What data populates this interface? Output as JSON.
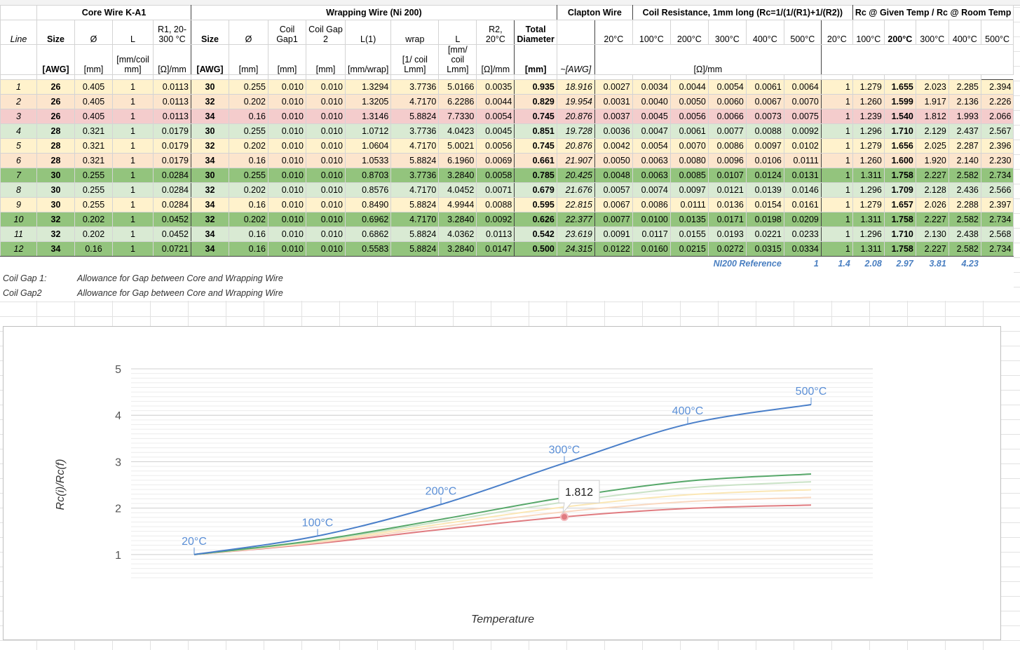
{
  "header": {
    "groups": {
      "core": "Core Wire K-A1",
      "wrap": "Wrapping Wire (Ni 200)",
      "clapton": "Clapton Wire",
      "coilres": "Coil Resistance, 1mm long (Rc=1/(1/(R1)+1/(R2))",
      "ratio": "Rc @ Given Temp / Rc @ Room Temp"
    },
    "cols": {
      "line": "Line",
      "size": "Size",
      "dia": "Ø",
      "l": "L",
      "r1": "R1, 20-300 °C",
      "gap1": "Coil Gap1",
      "gap2": "Coil Gap 2",
      "l1": "L(1)",
      "wrap": "wrap",
      "r2": "R2, 20°C",
      "total": "Total Diameter"
    },
    "temps": [
      "20°C",
      "100°C",
      "200°C",
      "300°C",
      "400°C",
      "500°C"
    ],
    "units": {
      "awg": "[AWG]",
      "mm": "[mm]",
      "mmcoil": "[mm/coil mm]",
      "ohmmm": "[Ω]/mm",
      "mmwrap": "[mm/wrap]",
      "perlmm": "[1/ coil Lmm]",
      "mmlmm": "[mm/ coil Lmm]",
      "awgapprox": "~[AWG]",
      "ohmcenter": "[Ω]/mm"
    }
  },
  "rows": [
    {
      "line": "1",
      "c": "bg-yellow",
      "cs": "26",
      "cd": "0.405",
      "cl": "1",
      "r1": "0.0113",
      "ws": "30",
      "wd": "0.255",
      "g1": "0.010",
      "g2": "0.010",
      "l1": "1.3294",
      "wrap": "3.7736",
      "wl": "5.0166",
      "r2": "0.0035",
      "td": "0.935",
      "awg": "18.916",
      "res": [
        "0.0027",
        "0.0034",
        "0.0044",
        "0.0054",
        "0.0061",
        "0.0064"
      ],
      "rat": [
        "1",
        "1.279",
        "1.655",
        "2.023",
        "2.285",
        "2.394"
      ]
    },
    {
      "line": "2",
      "c": "bg-orange",
      "cs": "26",
      "cd": "0.405",
      "cl": "1",
      "r1": "0.0113",
      "ws": "32",
      "wd": "0.202",
      "g1": "0.010",
      "g2": "0.010",
      "l1": "1.3205",
      "wrap": "4.7170",
      "wl": "6.2286",
      "r2": "0.0044",
      "td": "0.829",
      "awg": "19.954",
      "res": [
        "0.0031",
        "0.0040",
        "0.0050",
        "0.0060",
        "0.0067",
        "0.0070"
      ],
      "rat": [
        "1",
        "1.260",
        "1.599",
        "1.917",
        "2.136",
        "2.226"
      ]
    },
    {
      "line": "3",
      "c": "bg-red",
      "cs": "26",
      "cd": "0.405",
      "cl": "1",
      "r1": "0.0113",
      "ws": "34",
      "wd": "0.16",
      "g1": "0.010",
      "g2": "0.010",
      "l1": "1.3146",
      "wrap": "5.8824",
      "wl": "7.7330",
      "r2": "0.0054",
      "td": "0.745",
      "awg": "20.876",
      "res": [
        "0.0037",
        "0.0045",
        "0.0056",
        "0.0066",
        "0.0073",
        "0.0075"
      ],
      "rat": [
        "1",
        "1.239",
        "1.540",
        "1.812",
        "1.993",
        "2.066"
      ]
    },
    {
      "line": "4",
      "c": "bg-lgreen",
      "cs": "28",
      "cd": "0.321",
      "cl": "1",
      "r1": "0.0179",
      "ws": "30",
      "wd": "0.255",
      "g1": "0.010",
      "g2": "0.010",
      "l1": "1.0712",
      "wrap": "3.7736",
      "wl": "4.0423",
      "r2": "0.0045",
      "td": "0.851",
      "awg": "19.728",
      "res": [
        "0.0036",
        "0.0047",
        "0.0061",
        "0.0077",
        "0.0088",
        "0.0092"
      ],
      "rat": [
        "1",
        "1.296",
        "1.710",
        "2.129",
        "2.437",
        "2.567"
      ]
    },
    {
      "line": "5",
      "c": "bg-yellow",
      "cs": "28",
      "cd": "0.321",
      "cl": "1",
      "r1": "0.0179",
      "ws": "32",
      "wd": "0.202",
      "g1": "0.010",
      "g2": "0.010",
      "l1": "1.0604",
      "wrap": "4.7170",
      "wl": "5.0021",
      "r2": "0.0056",
      "td": "0.745",
      "awg": "20.876",
      "res": [
        "0.0042",
        "0.0054",
        "0.0070",
        "0.0086",
        "0.0097",
        "0.0102"
      ],
      "rat": [
        "1",
        "1.279",
        "1.656",
        "2.025",
        "2.287",
        "2.396"
      ]
    },
    {
      "line": "6",
      "c": "bg-orange",
      "cs": "28",
      "cd": "0.321",
      "cl": "1",
      "r1": "0.0179",
      "ws": "34",
      "wd": "0.16",
      "g1": "0.010",
      "g2": "0.010",
      "l1": "1.0533",
      "wrap": "5.8824",
      "wl": "6.1960",
      "r2": "0.0069",
      "td": "0.661",
      "awg": "21.907",
      "res": [
        "0.0050",
        "0.0063",
        "0.0080",
        "0.0096",
        "0.0106",
        "0.0111"
      ],
      "rat": [
        "1",
        "1.260",
        "1.600",
        "1.920",
        "2.140",
        "2.230"
      ]
    },
    {
      "line": "7",
      "c": "bg-green",
      "cs": "30",
      "cd": "0.255",
      "cl": "1",
      "r1": "0.0284",
      "ws": "30",
      "wd": "0.255",
      "g1": "0.010",
      "g2": "0.010",
      "l1": "0.8703",
      "wrap": "3.7736",
      "wl": "3.2840",
      "r2": "0.0058",
      "td": "0.785",
      "awg": "20.425",
      "res": [
        "0.0048",
        "0.0063",
        "0.0085",
        "0.0107",
        "0.0124",
        "0.0131"
      ],
      "rat": [
        "1",
        "1.311",
        "1.758",
        "2.227",
        "2.582",
        "2.734"
      ]
    },
    {
      "line": "8",
      "c": "bg-lgreen",
      "cs": "30",
      "cd": "0.255",
      "cl": "1",
      "r1": "0.0284",
      "ws": "32",
      "wd": "0.202",
      "g1": "0.010",
      "g2": "0.010",
      "l1": "0.8576",
      "wrap": "4.7170",
      "wl": "4.0452",
      "r2": "0.0071",
      "td": "0.679",
      "awg": "21.676",
      "res": [
        "0.0057",
        "0.0074",
        "0.0097",
        "0.0121",
        "0.0139",
        "0.0146"
      ],
      "rat": [
        "1",
        "1.296",
        "1.709",
        "2.128",
        "2.436",
        "2.566"
      ]
    },
    {
      "line": "9",
      "c": "bg-yellow",
      "cs": "30",
      "cd": "0.255",
      "cl": "1",
      "r1": "0.0284",
      "ws": "34",
      "wd": "0.16",
      "g1": "0.010",
      "g2": "0.010",
      "l1": "0.8490",
      "wrap": "5.8824",
      "wl": "4.9944",
      "r2": "0.0088",
      "td": "0.595",
      "awg": "22.815",
      "res": [
        "0.0067",
        "0.0086",
        "0.0111",
        "0.0136",
        "0.0154",
        "0.0161"
      ],
      "rat": [
        "1",
        "1.279",
        "1.657",
        "2.026",
        "2.288",
        "2.397"
      ]
    },
    {
      "line": "10",
      "c": "bg-green",
      "cs": "32",
      "cd": "0.202",
      "cl": "1",
      "r1": "0.0452",
      "ws": "32",
      "wd": "0.202",
      "g1": "0.010",
      "g2": "0.010",
      "l1": "0.6962",
      "wrap": "4.7170",
      "wl": "3.2840",
      "r2": "0.0092",
      "td": "0.626",
      "awg": "22.377",
      "res": [
        "0.0077",
        "0.0100",
        "0.0135",
        "0.0171",
        "0.0198",
        "0.0209"
      ],
      "rat": [
        "1",
        "1.311",
        "1.758",
        "2.227",
        "2.582",
        "2.734"
      ]
    },
    {
      "line": "11",
      "c": "bg-lgreen",
      "cs": "32",
      "cd": "0.202",
      "cl": "1",
      "r1": "0.0452",
      "ws": "34",
      "wd": "0.16",
      "g1": "0.010",
      "g2": "0.010",
      "l1": "0.6862",
      "wrap": "5.8824",
      "wl": "4.0362",
      "r2": "0.0113",
      "td": "0.542",
      "awg": "23.619",
      "res": [
        "0.0091",
        "0.0117",
        "0.0155",
        "0.0193",
        "0.0221",
        "0.0233"
      ],
      "rat": [
        "1",
        "1.296",
        "1.710",
        "2.130",
        "2.438",
        "2.568"
      ]
    },
    {
      "line": "12",
      "c": "bg-green",
      "cs": "34",
      "cd": "0.16",
      "cl": "1",
      "r1": "0.0721",
      "ws": "34",
      "wd": "0.16",
      "g1": "0.010",
      "g2": "0.010",
      "l1": "0.5583",
      "wrap": "5.8824",
      "wl": "3.2840",
      "r2": "0.0147",
      "td": "0.500",
      "awg": "24.315",
      "res": [
        "0.0122",
        "0.0160",
        "0.0215",
        "0.0272",
        "0.0315",
        "0.0334"
      ],
      "rat": [
        "1",
        "1.311",
        "1.758",
        "2.227",
        "2.582",
        "2.734"
      ]
    }
  ],
  "reference": {
    "label": "NI200 Reference",
    "values": [
      "1",
      "1.4",
      "2.08",
      "2.97",
      "3.81",
      "4.23"
    ]
  },
  "notes": [
    {
      "key": "Coil Gap 1:",
      "text": "Allowance for Gap between Core and Wrapping Wire"
    },
    {
      "key": "Coil Gap2",
      "text": "Allowance for Gap between Core and Wrapping Wire"
    }
  ],
  "chart_data": {
    "type": "line",
    "title": "",
    "xlabel": "Temperature",
    "ylabel": "Rc(i)/Rc(f)",
    "categories": [
      "20°C",
      "100°C",
      "200°C",
      "300°C",
      "400°C",
      "500°C"
    ],
    "ylim": [
      0.5,
      5
    ],
    "yticks": [
      1,
      2,
      3,
      4,
      5
    ],
    "grid": true,
    "series": [
      {
        "color": "#4a7fc9",
        "values": [
          1,
          1.4,
          2.08,
          2.97,
          3.81,
          4.23
        ],
        "point_labels": true
      },
      {
        "color": "#57a86a",
        "values": [
          1,
          1.311,
          1.758,
          2.227,
          2.582,
          2.734
        ]
      },
      {
        "color": "#c9e2c6",
        "values": [
          1,
          1.296,
          1.71,
          2.129,
          2.437,
          2.567
        ]
      },
      {
        "color": "#fbe7b5",
        "values": [
          1,
          1.279,
          1.656,
          2.025,
          2.287,
          2.396
        ]
      },
      {
        "color": "#f9d8c0",
        "values": [
          1,
          1.26,
          1.6,
          1.92,
          2.14,
          2.23
        ]
      },
      {
        "color": "#e07b80",
        "values": [
          1,
          1.239,
          1.54,
          1.812,
          1.993,
          2.066
        ]
      }
    ],
    "tooltip": {
      "series": 5,
      "point": 3,
      "text": "1.812"
    }
  }
}
